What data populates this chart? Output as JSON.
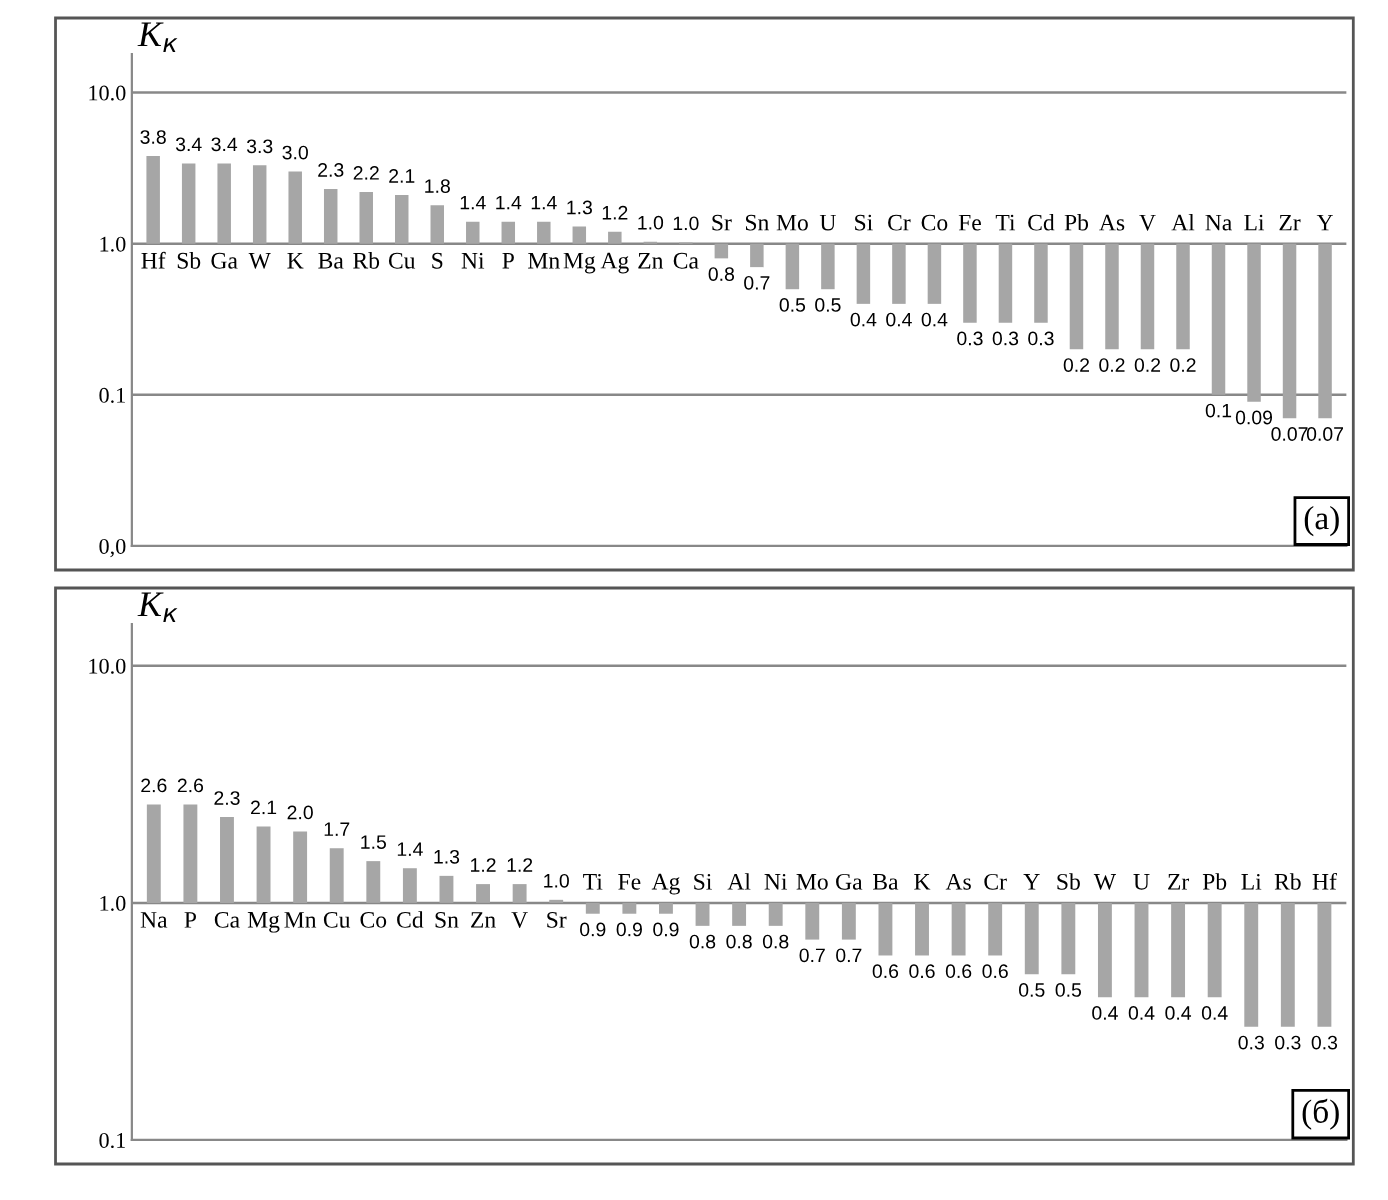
{
  "chart_data": [
    {
      "type": "bar",
      "ylabel": "K$_{к}$",
      "log": true,
      "grid": "y",
      "color": "#a6a6a6",
      "categories": [
        "Hf",
        "Sb",
        "Ga",
        "W",
        "K",
        "Ba",
        "Rb",
        "Cu",
        "S",
        "Ni",
        "P",
        "Mn",
        "Mg",
        "Ag",
        "Zn",
        "Ca",
        "Sr",
        "Sn",
        "Mo",
        "U",
        "Si",
        "Cr",
        "Co",
        "Fe",
        "Ti",
        "Cd",
        "Pb",
        "As",
        "V",
        "Al",
        "Na",
        "Li",
        "Zr",
        "Y"
      ],
      "base": [
        1,
        1,
        1,
        1,
        1,
        1,
        1,
        1,
        1,
        1,
        1,
        1,
        1,
        1,
        1,
        1,
        1,
        1,
        1,
        1,
        1,
        1,
        1,
        1,
        1,
        1,
        1,
        1,
        1,
        1,
        1,
        1,
        1,
        1
      ],
      "values": [
        2.8,
        2.4,
        2.4,
        2.3,
        2.0,
        1.3,
        1.2,
        1.1,
        0.8,
        0.4,
        0.4,
        0.4,
        0.3,
        0.2,
        0.03,
        0.02,
        -0.2,
        -0.3,
        -0.5,
        -0.5,
        -0.6,
        -0.6,
        -0.6,
        -0.7,
        -0.7,
        -0.7,
        -0.8,
        -0.8,
        -0.8,
        -0.8,
        -0.9,
        -0.91,
        -0.93,
        -0.93
      ],
      "value_labels": [
        "3.8",
        "3.4",
        "3.4",
        "3.3",
        "3.0",
        "2.3",
        "2.2",
        "2.1",
        "1.8",
        "1.4",
        "1.4",
        "1.4",
        "1.3",
        "1.2",
        "1.0",
        "1.0",
        "0.8",
        "0.7",
        "0.5",
        "0.5",
        "0.4",
        "0.4",
        "0.4",
        "0.3",
        "0.3",
        "0.3",
        "0.2",
        "0.2",
        "0.2",
        "0.2",
        "0.1",
        "0.09",
        "0.07",
        "0.07"
      ],
      "ylim": [
        0.01,
        18
      ],
      "yticks": [
        {
          "value": 0.01,
          "label": "0,0"
        },
        {
          "value": 0.1,
          "label": "0.1"
        },
        {
          "value": 1,
          "label": "1.0"
        },
        {
          "value": 10,
          "label": "10.0"
        }
      ],
      "annotations": [
        "(a)"
      ]
    },
    {
      "type": "bar",
      "ylabel": "K$_{к}$",
      "log": true,
      "grid": "y",
      "color": "#a6a6a6",
      "categories": [
        "Na",
        "P",
        "Ca",
        "Mg",
        "Mn",
        "Cu",
        "Co",
        "Cd",
        "Sn",
        "Zn",
        "V",
        "Sr",
        "Ti",
        "Fe",
        "Ag",
        "Si",
        "Al",
        "Ni",
        "Mo",
        "Ga",
        "Ba",
        "K",
        "As",
        "Cr",
        "Y",
        "Sb",
        "W",
        "U",
        "Zr",
        "Pb",
        "Li",
        "Rb",
        "Hf"
      ],
      "base": [
        1,
        1,
        1,
        1,
        1,
        1,
        1,
        1,
        1,
        1,
        1,
        1,
        1,
        1,
        1,
        1,
        1,
        1,
        1,
        1,
        1,
        1,
        1,
        1,
        1,
        1,
        1,
        1,
        1,
        1,
        1,
        1,
        1
      ],
      "values": [
        1.6,
        1.6,
        1.3,
        1.1,
        1.0,
        0.7,
        0.5,
        0.4,
        0.3,
        0.2,
        0.2,
        0.03,
        -0.1,
        -0.1,
        -0.1,
        -0.2,
        -0.2,
        -0.2,
        -0.3,
        -0.3,
        -0.4,
        -0.4,
        -0.4,
        -0.4,
        -0.5,
        -0.5,
        -0.6,
        -0.6,
        -0.6,
        -0.6,
        -0.7,
        -0.7,
        -0.7
      ],
      "value_labels": [
        "2.6",
        "2.6",
        "2.3",
        "2.1",
        "2.0",
        "1.7",
        "1.5",
        "1.4",
        "1.3",
        "1.2",
        "1.2",
        "1.0",
        "0.9",
        "0.9",
        "0.9",
        "0.8",
        "0.8",
        "0.8",
        "0.7",
        "0.7",
        "0.6",
        "0.6",
        "0.6",
        "0.6",
        "0.5",
        "0.5",
        "0.4",
        "0.4",
        "0.4",
        "0.4",
        "0.3",
        "0.3",
        "0.3"
      ],
      "ylim": [
        0.1,
        15
      ],
      "yticks": [
        {
          "value": 0.1,
          "label": "0.1"
        },
        {
          "value": 1,
          "label": "1.0"
        },
        {
          "value": 10,
          "label": "10.0"
        }
      ],
      "annotations": [
        "(б)"
      ]
    }
  ]
}
